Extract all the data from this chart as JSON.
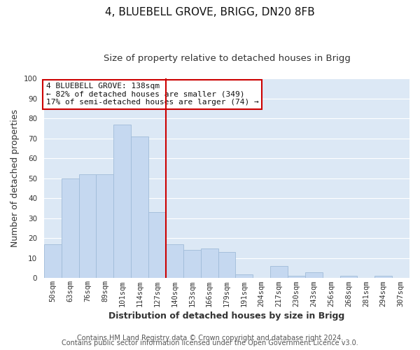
{
  "title": "4, BLUEBELL GROVE, BRIGG, DN20 8FB",
  "subtitle": "Size of property relative to detached houses in Brigg",
  "xlabel": "Distribution of detached houses by size in Brigg",
  "ylabel": "Number of detached properties",
  "bar_labels": [
    "50sqm",
    "63sqm",
    "76sqm",
    "89sqm",
    "101sqm",
    "114sqm",
    "127sqm",
    "140sqm",
    "153sqm",
    "166sqm",
    "179sqm",
    "191sqm",
    "204sqm",
    "217sqm",
    "230sqm",
    "243sqm",
    "256sqm",
    "268sqm",
    "281sqm",
    "294sqm",
    "307sqm"
  ],
  "bar_values": [
    17,
    50,
    52,
    52,
    77,
    71,
    33,
    17,
    14,
    15,
    13,
    2,
    0,
    6,
    1,
    3,
    0,
    1,
    0,
    1,
    0
  ],
  "bar_color": "#c5d8f0",
  "bar_edge_color": "#a0bcd8",
  "vline_index": 7,
  "vline_color": "#cc0000",
  "annotation_title": "4 BLUEBELL GROVE: 138sqm",
  "annotation_line1": "← 82% of detached houses are smaller (349)",
  "annotation_line2": "17% of semi-detached houses are larger (74) →",
  "annotation_box_color": "#ffffff",
  "annotation_box_edge": "#cc0000",
  "footer_line1": "Contains HM Land Registry data © Crown copyright and database right 2024.",
  "footer_line2": "Contains public sector information licensed under the Open Government Licence v3.0.",
  "ylim": [
    0,
    100
  ],
  "background_color": "#ffffff",
  "plot_background_color": "#dce8f5",
  "grid_color": "#ffffff",
  "title_fontsize": 11,
  "subtitle_fontsize": 9.5,
  "axis_label_fontsize": 9,
  "tick_fontsize": 7.5,
  "annotation_fontsize": 8,
  "footer_fontsize": 7
}
